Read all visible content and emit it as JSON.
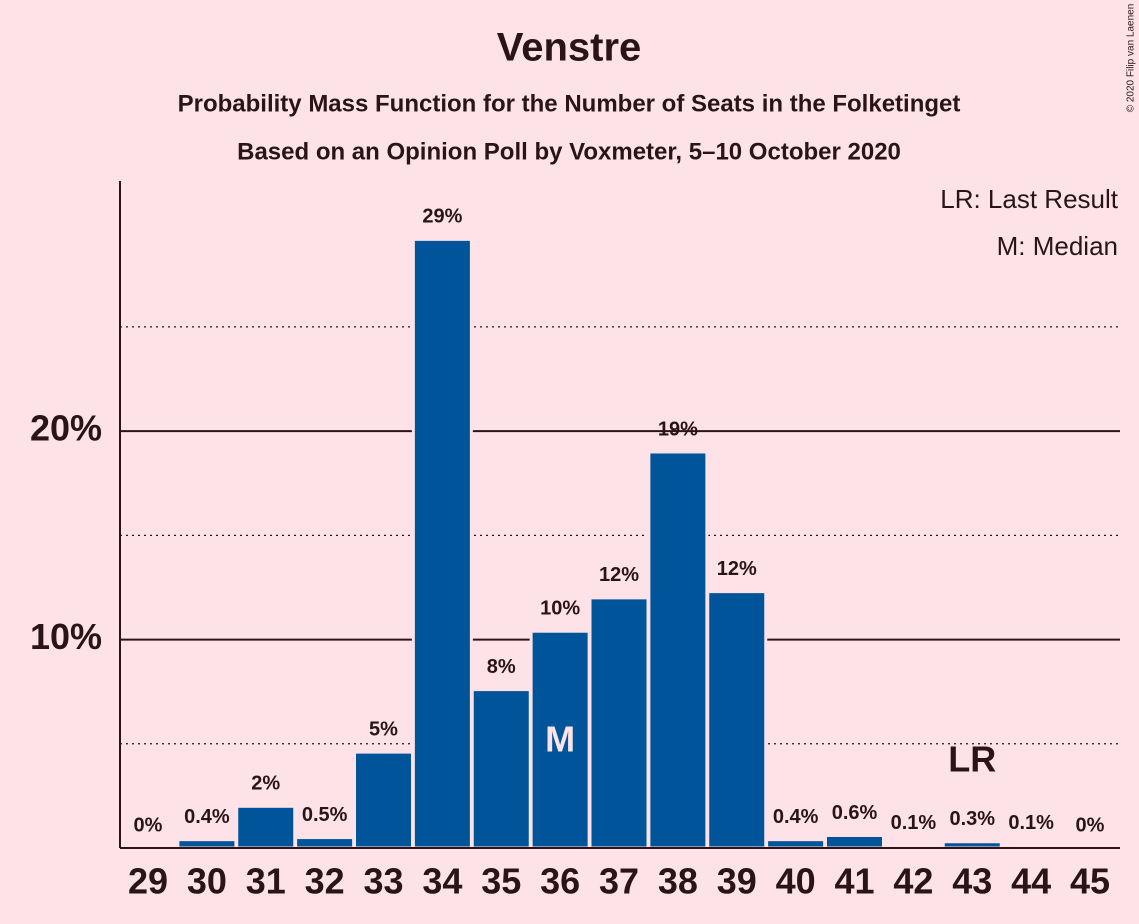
{
  "chart_data": {
    "type": "bar",
    "title": "Venstre",
    "subtitle": "Probability Mass Function for the Number of Seats in the Folketinget",
    "subtitle2": "Based on an Opinion Poll by Voxmeter, 5–10 October 2020",
    "copyright": "© 2020 Filip van Laenen",
    "categories": [
      "29",
      "30",
      "31",
      "32",
      "33",
      "34",
      "35",
      "36",
      "37",
      "38",
      "39",
      "40",
      "41",
      "42",
      "43",
      "44",
      "45"
    ],
    "values": [
      0,
      0.4,
      2.0,
      0.5,
      4.6,
      29.2,
      7.6,
      10.4,
      12.0,
      19.0,
      12.3,
      0.4,
      0.6,
      0.1,
      0.3,
      0.1,
      0
    ],
    "value_labels": [
      "0%",
      "0.4%",
      "2%",
      "0.5%",
      "5%",
      "29%",
      "8%",
      "10%",
      "12%",
      "19%",
      "12%",
      "0.4%",
      "0.6%",
      "0.1%",
      "0.3%",
      "0.1%",
      "0%"
    ],
    "color": "#00559a",
    "ylim": [
      0,
      32
    ],
    "yticks": [
      {
        "value": 10,
        "label": "10%"
      },
      {
        "value": 20,
        "label": "20%"
      }
    ],
    "minor_grid": [
      5,
      15,
      25
    ],
    "grid": true,
    "annotations": [
      {
        "text": "M",
        "x": "36"
      },
      {
        "text": "LR",
        "x": "43"
      }
    ],
    "legend": [
      "LR: Last Result",
      "M: Median"
    ],
    "legend_position": "upper right"
  }
}
